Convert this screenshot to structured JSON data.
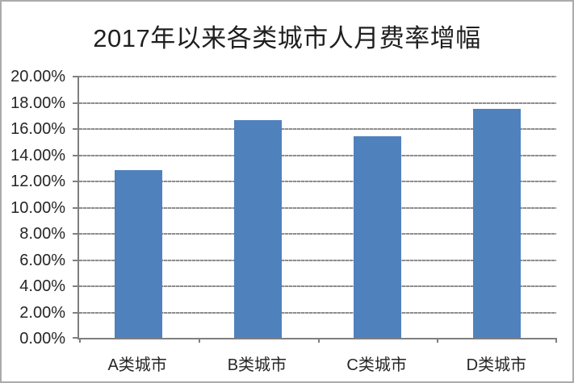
{
  "chart_data": {
    "type": "bar",
    "title": "2017年以来各类城市人月费率增幅",
    "categories": [
      "A类城市",
      "B类城市",
      "C类城市",
      "D类城市"
    ],
    "values": [
      12.8,
      16.6,
      15.4,
      17.5
    ],
    "value_unit": "%",
    "xlabel": "",
    "ylabel": "",
    "ylim": [
      0,
      20
    ],
    "ytick_step": 2,
    "ytick_labels": [
      "0.00%",
      "2.00%",
      "4.00%",
      "6.00%",
      "8.00%",
      "10.00%",
      "12.00%",
      "14.00%",
      "16.00%",
      "18.00%",
      "20.00%"
    ],
    "grid": true,
    "gridline_style": "dashed",
    "legend": "none",
    "colors": {
      "bar": "#4F81BD",
      "gridline": "#8d8d8d",
      "axis": "#7f7f7f",
      "text": "#262626",
      "title_text": "#1f1f1f",
      "background": "#ffffff",
      "frame_border": "#ababab"
    }
  }
}
